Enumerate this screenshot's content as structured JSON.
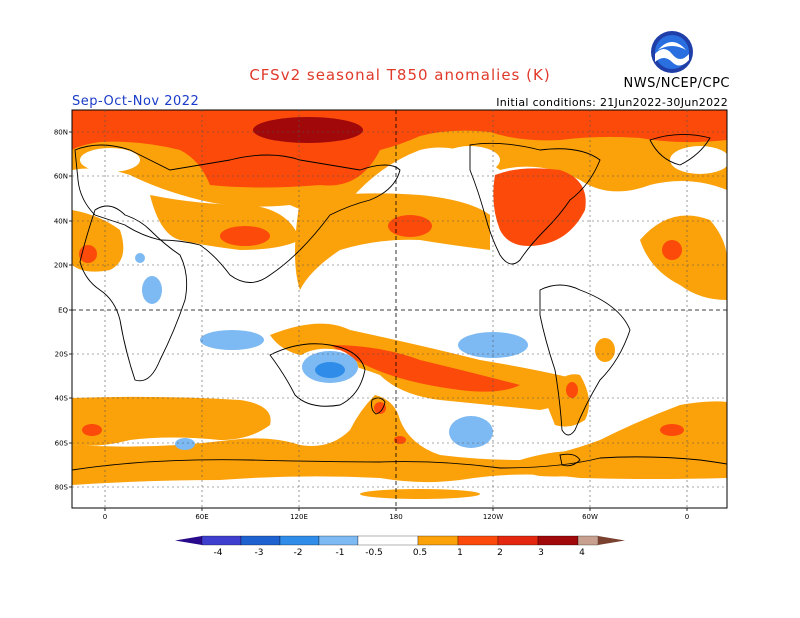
{
  "title": "CFSv2 seasonal T850 anomalies (K)",
  "agency": "NWS/NCEP/CPC",
  "logo_text": "NOAA",
  "season": "Sep-Oct-Nov 2022",
  "initial_conditions": "Initial conditions: 21Jun2022-30Jun2022",
  "lat_labels": [
    "80N",
    "60N",
    "40N",
    "20N",
    "EQ",
    "20S",
    "40S",
    "60S",
    "80S"
  ],
  "lon_labels": [
    "0",
    "60E",
    "120E",
    "180",
    "120W",
    "60W",
    "0"
  ],
  "colorbar": {
    "ticks": [
      "-4",
      "-3",
      "-2",
      "-1",
      "-0.5",
      "0.5",
      "1",
      "2",
      "3",
      "4"
    ],
    "colors": {
      "below_-4": "#2a0a8c",
      "-4_-3": "#3f3fcf",
      "-3_-2": "#1e62d0",
      "-2_-1": "#2f8ce8",
      "-1_-0.5": "#7db9f2",
      "-0.5_0.5": "#ffffff",
      "0.5_1": "#fba10a",
      "1_2": "#fb4a0a",
      "2_3": "#e3280f",
      "3_4": "#a0080a",
      "4_5": "#c8a090",
      "above_5": "#7a4030"
    }
  }
}
